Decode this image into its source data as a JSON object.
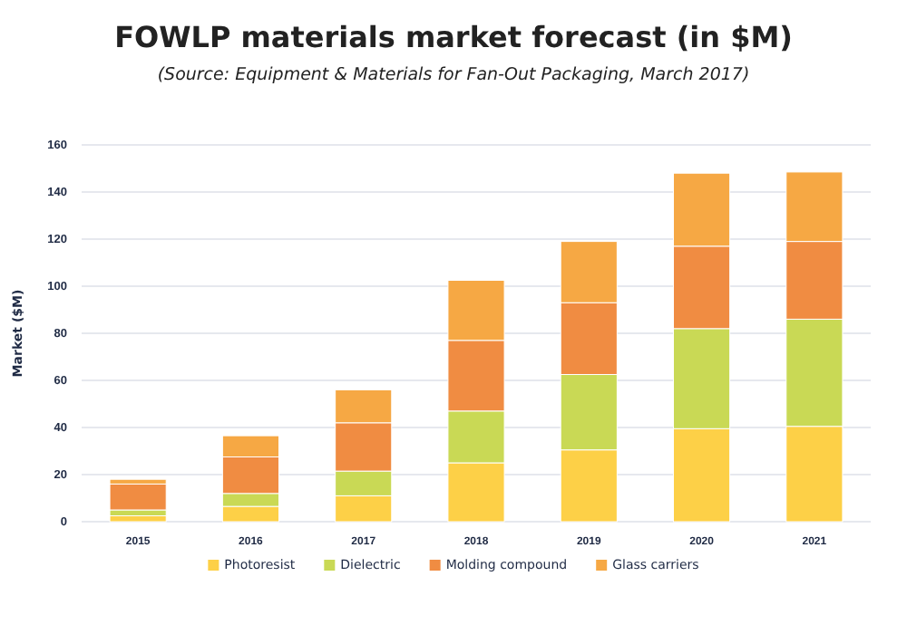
{
  "chart_data": {
    "type": "bar",
    "title": "FOWLP materials market forecast (in $M)",
    "subtitle": "(Source: Equipment & Materials for Fan-Out Packaging, March 2017)",
    "ylabel": "Market ($M)",
    "categories": [
      "2015",
      "2016",
      "2017",
      "2018",
      "2019",
      "2020",
      "2021"
    ],
    "series": [
      {
        "name": "Photoresist",
        "color": "#fdd047",
        "values": [
          2.5,
          6.5,
          11,
          25,
          30.5,
          39.5,
          40.5
        ]
      },
      {
        "name": "Dielectric",
        "color": "#c9d955",
        "values": [
          2.5,
          5.5,
          10.5,
          22,
          32,
          42.5,
          45.5
        ]
      },
      {
        "name": "Molding compound",
        "color": "#f08c42",
        "values": [
          11,
          15.5,
          20.5,
          30,
          30.5,
          35,
          33
        ]
      },
      {
        "name": "Glass carriers",
        "color": "#f6a844",
        "values": [
          2,
          9,
          14,
          25.5,
          26,
          31,
          29.5
        ]
      }
    ],
    "stacked": true,
    "ylim": [
      0,
      160
    ],
    "yticks": [
      0,
      20,
      40,
      60,
      80,
      100,
      120,
      140,
      160
    ],
    "grid": "y",
    "legend": "bottom"
  }
}
